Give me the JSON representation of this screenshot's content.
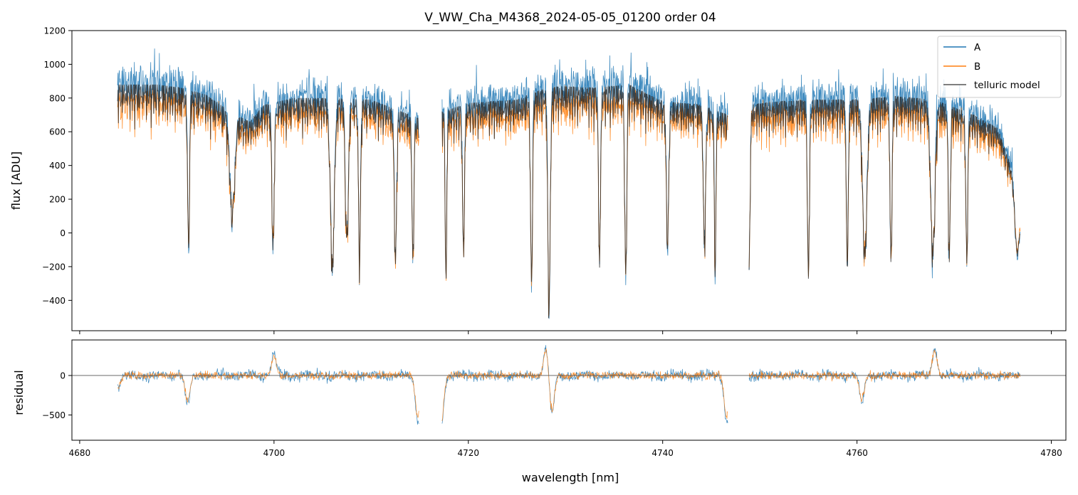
{
  "figure": {
    "title": "V_WW_Cha_M4368_2024-05-05_01200  order 04"
  },
  "chart_data": [
    {
      "panel": "top",
      "type": "line",
      "title": "V_WW_Cha_M4368_2024-05-05_01200  order 04",
      "xlabel": "",
      "ylabel": "flux [ADU]",
      "xlim": [
        4679.2,
        4781.5
      ],
      "ylim": [
        -580,
        1200
      ],
      "y_ticks": [
        -400,
        -200,
        0,
        200,
        400,
        600,
        800,
        1000,
        1200
      ],
      "y_tick_labels": [
        "−400",
        "−200",
        "0",
        "200",
        "400",
        "600",
        "800",
        "1000",
        "1200"
      ],
      "x_ticks": [
        4680,
        4700,
        4720,
        4740,
        4760,
        4780
      ],
      "x_tick_labels_shown": false,
      "grid": false,
      "legend_position": "top-right",
      "segments": [
        [
          4683.9,
          4714.9
        ],
        [
          4717.3,
          4746.7
        ],
        [
          4748.9,
          4776.8
        ]
      ],
      "series": [
        {
          "name": "A",
          "color": "#1f77b4"
        },
        {
          "name": "B",
          "color": "#ff7f0e"
        },
        {
          "name": "telluric model",
          "color": "#555555"
        }
      ],
      "continuum_points": {
        "x": [
          4683.9,
          4685.0,
          4688.0,
          4690.5,
          4693.0,
          4695.5,
          4697.5,
          4699.0,
          4702.0,
          4706.0,
          4710.0,
          4714.9,
          4717.3,
          4720.0,
          4725.0,
          4727.5,
          4729.5,
          4733.0,
          4736.5,
          4740.0,
          4744.0,
          4746.7,
          4748.9,
          4752.0,
          4756.0,
          4760.0,
          4764.0,
          4768.0,
          4772.0,
          4774.5,
          4775.8,
          4776.8
        ],
        "model": [
          880,
          880,
          880,
          860,
          820,
          720,
          660,
          760,
          800,
          800,
          790,
          680,
          720,
          770,
          790,
          850,
          870,
          860,
          880,
          780,
          760,
          700,
          760,
          780,
          790,
          790,
          810,
          790,
          700,
          620,
          400,
          60
        ],
        "A_scale": 1.08,
        "B_scale": 0.93
      },
      "absorption_lines": [
        {
          "x": 4691.2,
          "depth": -50,
          "width": 0.1
        },
        {
          "x": 4695.7,
          "depth": 120,
          "width": 0.25
        },
        {
          "x": 4699.9,
          "depth": -70,
          "width": 0.12
        },
        {
          "x": 4706.0,
          "depth": -200,
          "width": 0.2
        },
        {
          "x": 4707.5,
          "depth": -50,
          "width": 0.15
        },
        {
          "x": 4708.8,
          "depth": -200,
          "width": 0.1
        },
        {
          "x": 4712.5,
          "depth": -150,
          "width": 0.12
        },
        {
          "x": 4714.3,
          "depth": -130,
          "width": 0.1
        },
        {
          "x": 4717.7,
          "depth": -300,
          "width": 0.08
        },
        {
          "x": 4719.5,
          "depth": -100,
          "width": 0.1
        },
        {
          "x": 4726.5,
          "depth": -290,
          "width": 0.1
        },
        {
          "x": 4728.3,
          "depth": -480,
          "width": 0.12
        },
        {
          "x": 4733.5,
          "depth": -170,
          "width": 0.1
        },
        {
          "x": 4736.2,
          "depth": -280,
          "width": 0.1
        },
        {
          "x": 4740.5,
          "depth": -50,
          "width": 0.12
        },
        {
          "x": 4744.3,
          "depth": -60,
          "width": 0.12
        },
        {
          "x": 4745.4,
          "depth": -250,
          "width": 0.08
        },
        {
          "x": 4748.9,
          "depth": -150,
          "width": 0.1
        },
        {
          "x": 4755.0,
          "depth": -250,
          "width": 0.1
        },
        {
          "x": 4759.0,
          "depth": -180,
          "width": 0.1
        },
        {
          "x": 4760.8,
          "depth": -130,
          "width": 0.22
        },
        {
          "x": 4763.5,
          "depth": -170,
          "width": 0.1
        },
        {
          "x": 4767.8,
          "depth": -120,
          "width": 0.22
        },
        {
          "x": 4769.5,
          "depth": -160,
          "width": 0.1
        },
        {
          "x": 4771.3,
          "depth": -150,
          "width": 0.1
        },
        {
          "x": 4776.5,
          "depth": -120,
          "width": 0.2
        }
      ]
    },
    {
      "panel": "bottom",
      "type": "line",
      "xlabel": "wavelength [nm]",
      "ylabel": "residual",
      "xlim": [
        4679.2,
        4781.5
      ],
      "ylim": [
        -820,
        450
      ],
      "y_ticks": [
        -500,
        0
      ],
      "y_tick_labels": [
        "−500",
        "0"
      ],
      "x_ticks": [
        4680,
        4700,
        4720,
        4740,
        4760,
        4780
      ],
      "x_tick_labels": [
        "4680",
        "4700",
        "4720",
        "4740",
        "4760",
        "4780"
      ],
      "grid": false,
      "zero_line": true,
      "series": [
        {
          "name": "A",
          "color": "#1f77b4"
        },
        {
          "name": "B",
          "color": "#ff7f0e"
        }
      ],
      "features": [
        {
          "x": 4684.0,
          "value": -170
        },
        {
          "x": 4691.1,
          "value": -400
        },
        {
          "x": 4700.0,
          "value": 300
        },
        {
          "x": 4714.8,
          "value": -640
        },
        {
          "x": 4717.2,
          "value": -760
        },
        {
          "x": 4728.0,
          "value": 420
        },
        {
          "x": 4728.6,
          "value": -560
        },
        {
          "x": 4746.6,
          "value": -660
        },
        {
          "x": 4760.5,
          "value": -380
        },
        {
          "x": 4768.0,
          "value": 400
        }
      ]
    }
  ]
}
